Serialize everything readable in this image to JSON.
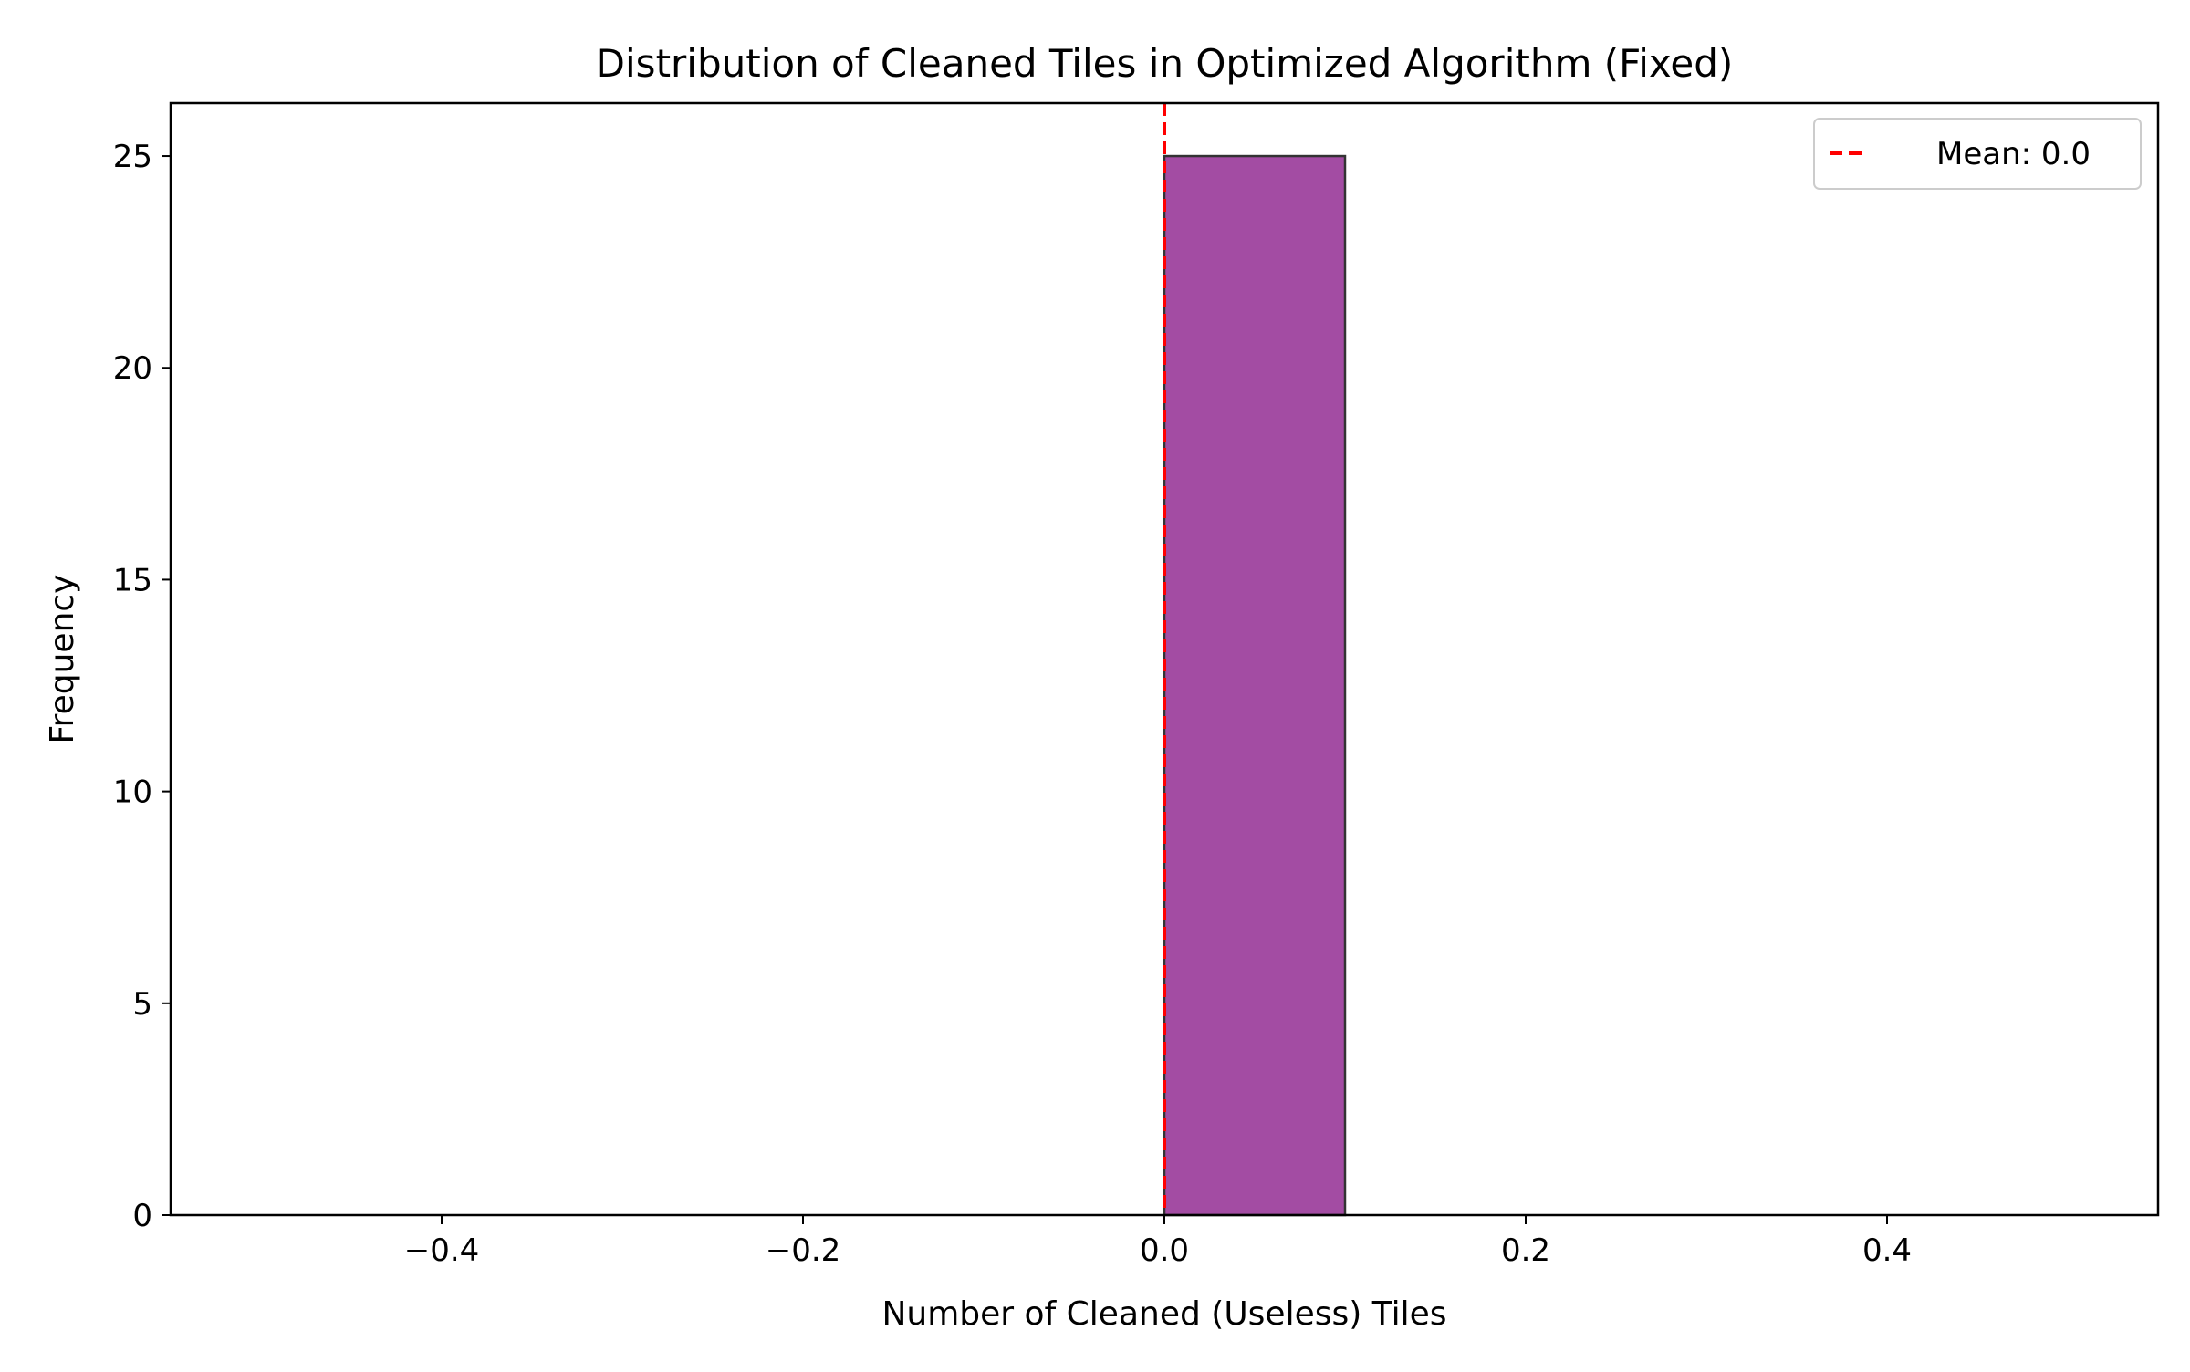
{
  "chart_data": {
    "type": "bar",
    "title": "Distribution of Cleaned Tiles in Optimized Algorithm (Fixed)",
    "xlabel": "Number of Cleaned (Useless) Tiles",
    "ylabel": "Frequency",
    "xlim": [
      -0.55,
      0.55
    ],
    "ylim": [
      0,
      26.25
    ],
    "x_ticks": [
      -0.4,
      -0.2,
      0.0,
      0.2,
      0.4
    ],
    "x_tick_labels": [
      "−0.4",
      "−0.2",
      "0.0",
      "0.2",
      "0.4"
    ],
    "y_ticks": [
      0,
      5,
      10,
      15,
      20,
      25
    ],
    "y_tick_labels": [
      "0",
      "5",
      "10",
      "15",
      "20",
      "25"
    ],
    "bins": [
      {
        "start": -0.5,
        "end": -0.4,
        "count": 0
      },
      {
        "start": -0.4,
        "end": -0.3,
        "count": 0
      },
      {
        "start": -0.3,
        "end": -0.2,
        "count": 0
      },
      {
        "start": -0.2,
        "end": -0.1,
        "count": 0
      },
      {
        "start": -0.1,
        "end": 0.0,
        "count": 0
      },
      {
        "start": 0.0,
        "end": 0.1,
        "count": 25
      },
      {
        "start": 0.1,
        "end": 0.2,
        "count": 0
      },
      {
        "start": 0.2,
        "end": 0.3,
        "count": 0
      },
      {
        "start": 0.3,
        "end": 0.4,
        "count": 0
      },
      {
        "start": 0.4,
        "end": 0.5,
        "count": 0
      }
    ],
    "mean_line": {
      "x": 0.0,
      "label": "Mean: 0.0",
      "color": "#ff0000",
      "style": "dashed"
    },
    "bar_color": "#a34ca3",
    "bar_edge_color": "#333333",
    "grid": false,
    "legend_position": "top-right"
  }
}
